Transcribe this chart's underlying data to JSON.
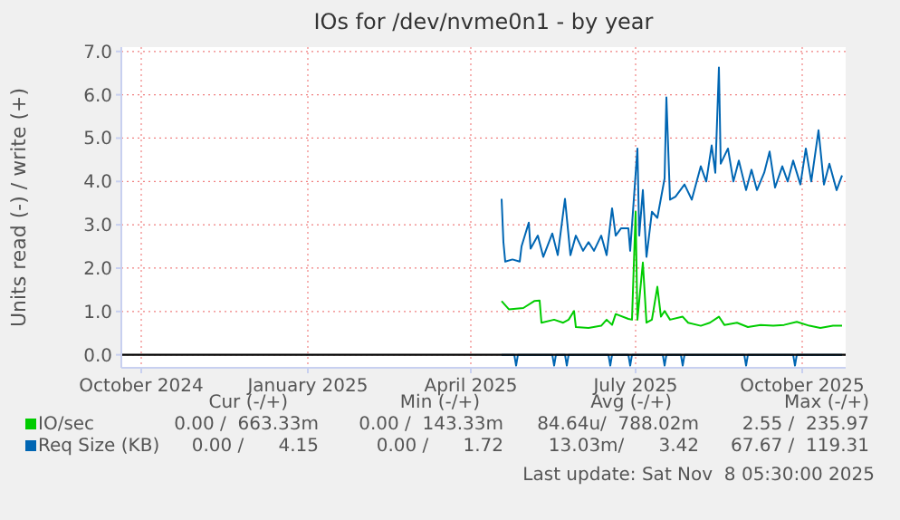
{
  "chart_data": {
    "type": "line",
    "title": "IOs for /dev/nvme0n1 - by year",
    "ylabel": "Units read (-) / write (+)",
    "xlim": [
      "2024-10-04",
      "2025-11-08"
    ],
    "ylim": [
      -0.3,
      7.1
    ],
    "xticks": [
      {
        "value": "2024-10-15",
        "label": "October 2024"
      },
      {
        "value": "2025-01-15",
        "label": "January 2025"
      },
      {
        "value": "2025-04-15",
        "label": "April 2025"
      },
      {
        "value": "2025-07-15",
        "label": "July 2025"
      },
      {
        "value": "2025-10-15",
        "label": "October 2025"
      }
    ],
    "yticks": [
      {
        "value": 0,
        "label": "0.0"
      },
      {
        "value": 1,
        "label": "1.0"
      },
      {
        "value": 2,
        "label": "2.0"
      },
      {
        "value": 3,
        "label": "3.0"
      },
      {
        "value": 4,
        "label": "4.0"
      },
      {
        "value": 5,
        "label": "5.0"
      },
      {
        "value": 6,
        "label": "6.0"
      },
      {
        "value": 7,
        "label": "7.0"
      }
    ],
    "grid": true,
    "legend": "bottom left",
    "ref_lines": [
      {
        "axis": "y",
        "value": 0,
        "color": "#000000"
      }
    ],
    "series": [
      {
        "name": "IO/sec",
        "color": "#00cc00",
        "x": [
          "2025-05-02",
          "2025-05-06",
          "2025-05-14",
          "2025-05-20",
          "2025-05-23",
          "2025-05-24",
          "2025-05-31",
          "2025-06-05",
          "2025-06-08",
          "2025-06-11",
          "2025-06-12",
          "2025-06-19",
          "2025-06-26",
          "2025-06-29",
          "2025-07-02",
          "2025-07-04",
          "2025-07-11",
          "2025-07-13",
          "2025-07-15",
          "2025-07-16",
          "2025-07-19",
          "2025-07-21",
          "2025-07-24",
          "2025-07-27",
          "2025-07-29",
          "2025-07-31",
          "2025-08-03",
          "2025-08-10",
          "2025-08-13",
          "2025-08-20",
          "2025-08-25",
          "2025-08-30",
          "2025-09-02",
          "2025-09-09",
          "2025-09-15",
          "2025-09-22",
          "2025-09-29",
          "2025-10-05",
          "2025-10-12",
          "2025-10-19",
          "2025-10-25",
          "2025-11-01",
          "2025-11-06"
        ],
        "values": [
          1.24,
          1.05,
          1.08,
          1.24,
          1.25,
          0.74,
          0.81,
          0.74,
          0.81,
          1.01,
          0.64,
          0.62,
          0.67,
          0.81,
          0.69,
          0.94,
          0.83,
          0.81,
          3.3,
          0.81,
          2.13,
          0.74,
          0.81,
          1.57,
          0.88,
          1.01,
          0.81,
          0.88,
          0.74,
          0.67,
          0.74,
          0.88,
          0.69,
          0.74,
          0.64,
          0.69,
          0.67,
          0.69,
          0.76,
          0.67,
          0.62,
          0.67,
          0.67
        ]
      },
      {
        "name": "Req Size (KB)",
        "color": "#0066b3",
        "x": [
          "2025-05-02",
          "2025-05-03",
          "2025-05-04",
          "2025-05-08",
          "2025-05-12",
          "2025-05-13",
          "2025-05-17",
          "2025-05-18",
          "2025-05-22",
          "2025-05-25",
          "2025-05-30",
          "2025-06-02",
          "2025-06-06",
          "2025-06-09",
          "2025-06-12",
          "2025-06-16",
          "2025-06-19",
          "2025-06-22",
          "2025-06-26",
          "2025-06-29",
          "2025-07-02",
          "2025-07-04",
          "2025-07-07",
          "2025-07-11",
          "2025-07-12",
          "2025-07-16",
          "2025-07-17",
          "2025-07-19",
          "2025-07-21",
          "2025-07-22",
          "2025-07-24",
          "2025-07-27",
          "2025-07-31",
          "2025-08-01",
          "2025-08-03",
          "2025-08-06",
          "2025-08-11",
          "2025-08-15",
          "2025-08-20",
          "2025-08-23",
          "2025-08-26",
          "2025-08-28",
          "2025-08-30",
          "2025-08-31",
          "2025-09-04",
          "2025-09-07",
          "2025-09-10",
          "2025-09-14",
          "2025-09-17",
          "2025-09-20",
          "2025-09-24",
          "2025-09-27",
          "2025-09-30",
          "2025-10-04",
          "2025-10-07",
          "2025-10-10",
          "2025-10-14",
          "2025-10-17",
          "2025-10-20",
          "2025-10-24",
          "2025-10-27",
          "2025-10-30",
          "2025-11-03",
          "2025-11-06"
        ],
        "values": [
          3.6,
          2.6,
          2.15,
          2.2,
          2.15,
          2.5,
          3.05,
          2.45,
          2.75,
          2.26,
          2.8,
          2.3,
          3.6,
          2.3,
          2.75,
          2.4,
          2.6,
          2.4,
          2.75,
          2.3,
          3.38,
          2.75,
          2.92,
          2.92,
          2.4,
          4.76,
          2.75,
          3.8,
          2.26,
          2.6,
          3.3,
          3.16,
          4.07,
          5.94,
          3.58,
          3.65,
          3.93,
          3.58,
          4.35,
          4.0,
          4.83,
          4.2,
          6.63,
          4.41,
          4.76,
          4.0,
          4.48,
          3.8,
          4.27,
          3.8,
          4.2,
          4.69,
          3.86,
          4.35,
          4.0,
          4.48,
          3.93,
          4.76,
          4.0,
          5.18,
          3.93,
          4.41,
          3.8,
          4.14
        ]
      },
      {
        "color": "#0066b3",
        "x": [
          "2025-05-02",
          "2025-05-09",
          "2025-05-10",
          "2025-05-11",
          "2025-05-30",
          "2025-05-31",
          "2025-06-01",
          "2025-06-06",
          "2025-06-07",
          "2025-06-08",
          "2025-06-30",
          "2025-07-01",
          "2025-07-02",
          "2025-07-11",
          "2025-07-12",
          "2025-07-13",
          "2025-07-30",
          "2025-07-31",
          "2025-08-01",
          "2025-08-09",
          "2025-08-10",
          "2025-08-11",
          "2025-09-13",
          "2025-09-14",
          "2025-09-15",
          "2025-10-10",
          "2025-10-11",
          "2025-10-12",
          "2025-11-06"
        ],
        "values": [
          0,
          0,
          -0.25,
          0,
          0,
          -0.25,
          0,
          0,
          -0.25,
          0,
          0,
          -0.25,
          0,
          0,
          -0.25,
          0,
          0,
          -0.25,
          0,
          0,
          -0.25,
          0,
          0,
          -0.25,
          0,
          0,
          -0.25,
          0,
          0
        ]
      }
    ],
    "annotations": [
      "Cur (-/+)",
      "Min (-/+)",
      "Avg (-/+)",
      "Max (-/+)",
      "0.00 /  663.33m",
      "0.00 /  143.33m",
      "84.64u/  788.02m",
      "2.55 /  235.97",
      "0.00 /      4.15",
      "0.00 /      1.72",
      "13.03m/      3.42",
      "67.67 /  119.31",
      "Last update: Sat Nov  8 05:30:00 2025"
    ]
  }
}
